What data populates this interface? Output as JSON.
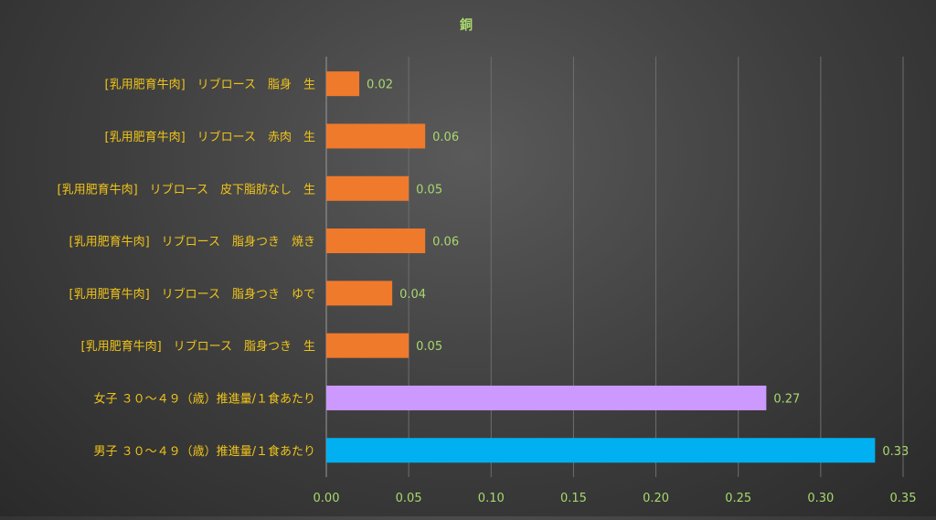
{
  "chart_data": {
    "type": "bar",
    "orientation": "horizontal",
    "title": "銅",
    "xlabel": "",
    "ylabel": "",
    "xlim": [
      0,
      0.35
    ],
    "x_ticks": [
      "0.00",
      "0.05",
      "0.10",
      "0.15",
      "0.20",
      "0.25",
      "0.30",
      "0.35"
    ],
    "x_tick_values": [
      0,
      0.05,
      0.1,
      0.15,
      0.2,
      0.25,
      0.3,
      0.35
    ],
    "grid": true,
    "categories": [
      "[乳用肥育牛肉]　リブロース　脂身　生",
      "[乳用肥育牛肉]　リブロース　赤肉　生",
      "[乳用肥育牛肉]　リブロース　皮下脂肪なし　生",
      "[乳用肥育牛肉]　リブロース　脂身つき　焼き",
      "[乳用肥育牛肉]　リブロース　脂身つき　ゆで",
      "[乳用肥育牛肉]　リブロース　脂身つき　生",
      "女子 ３０～４９（歳）推進量/１食あたり",
      "男子 ３０～４９（歳）推進量/１食あたり"
    ],
    "values": [
      0.02,
      0.06,
      0.05,
      0.06,
      0.04,
      0.05,
      0.267,
      0.333
    ],
    "value_labels": [
      "0.02",
      "0.06",
      "0.05",
      "0.06",
      "0.04",
      "0.05",
      "0.27",
      "0.33"
    ],
    "bar_colors": [
      "#f07a2c",
      "#f07a2c",
      "#f07a2c",
      "#f07a2c",
      "#f07a2c",
      "#f07a2c",
      "#cc99ff",
      "#00b0f0"
    ],
    "colors": {
      "title": "#a8d86e",
      "category_label": "#f0c419",
      "tick_label": "#a8d86e",
      "value_label": "#a8d86e",
      "gridline": "#6e6e6e",
      "axis": "#9a9a9a"
    }
  }
}
